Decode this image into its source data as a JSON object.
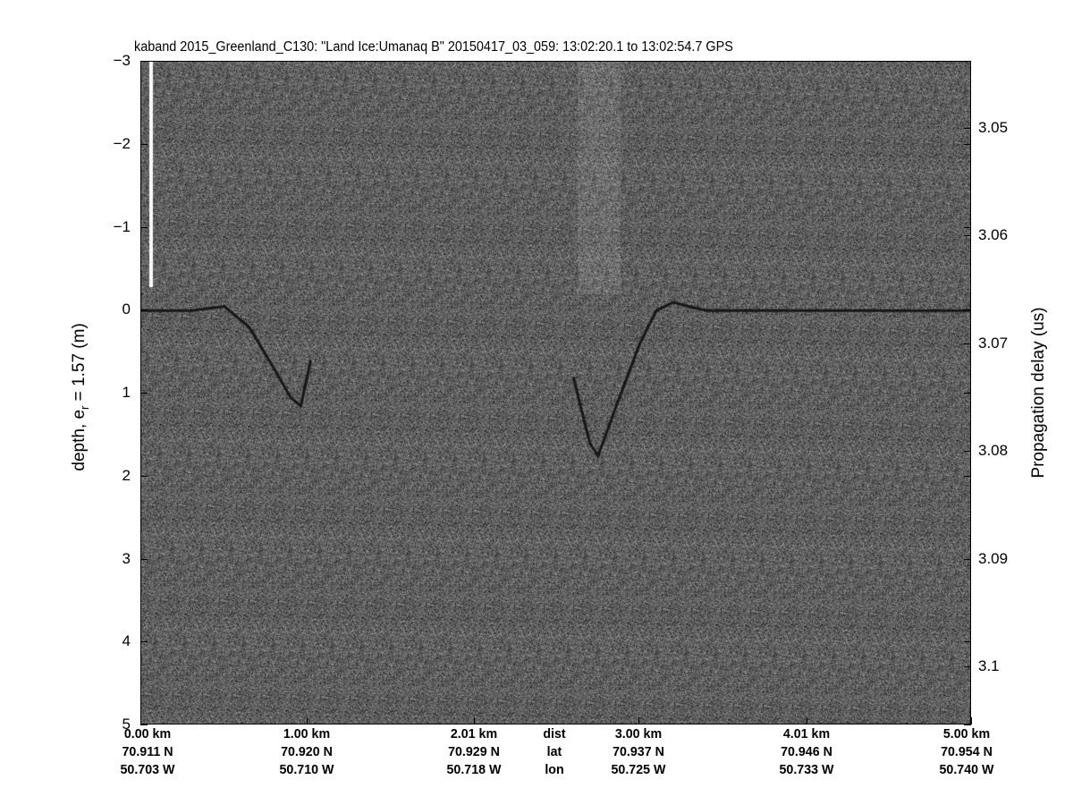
{
  "chart_data": {
    "type": "heatmap",
    "title": "kaband 2015_Greenland_C130: \"Land Ice:Umanaq B\"  20150417_03_059: 13:02:20.1 to 13:02:54.7 GPS",
    "ylabel_left": "depth, e",
    "ylabel_left_sub": "r",
    "ylabel_left_rest": " = 1.57 (m)",
    "ylabel_right": "Propagation delay (us)",
    "ylim_left": [
      -3,
      5
    ],
    "yticks_left": [
      "-3",
      "-2",
      "-1",
      "0",
      "1",
      "2",
      "3",
      "4",
      "5"
    ],
    "yticks_left_values": [
      -3,
      -2,
      -1,
      0,
      1,
      2,
      3,
      4,
      5
    ],
    "yticks_right": [
      "3.05",
      "3.06",
      "3.07",
      "3.08",
      "3.09",
      "3.1"
    ],
    "yticks_right_values": [
      3.05,
      3.06,
      3.07,
      3.08,
      3.09,
      3.1
    ],
    "xlim_km": [
      0,
      5
    ],
    "xticks_km": [
      0,
      1.0,
      2.01,
      3.0,
      4.01,
      5.0
    ],
    "x_rows": [
      {
        "label": "dist",
        "values": [
          "0.00 km",
          "1.00 km",
          "2.01 km",
          "3.00 km",
          "4.01 km",
          "5.00 km"
        ]
      },
      {
        "label": "lat",
        "values": [
          "70.911 N",
          "70.920 N",
          "70.929 N",
          "70.937 N",
          "70.946 N",
          "70.954 N"
        ]
      },
      {
        "label": "lon",
        "values": [
          "50.703 W",
          "50.710 W",
          "50.718 W",
          "50.725 W",
          "50.733 W",
          "50.740 W"
        ]
      }
    ],
    "colormap": "gray",
    "surface_trace": {
      "x_km": [
        0,
        0.3,
        0.5,
        0.65,
        0.8,
        0.9,
        0.96,
        1.02,
        null,
        2.6,
        2.7,
        2.75,
        2.85,
        3.0,
        3.1,
        3.2,
        3.4,
        4.0,
        5.0
      ],
      "depth_m": [
        0,
        0,
        -0.05,
        0.2,
        0.7,
        1.05,
        1.15,
        0.6,
        null,
        0.8,
        1.6,
        1.75,
        1.2,
        0.4,
        0.0,
        -0.1,
        0,
        0,
        0
      ]
    }
  }
}
